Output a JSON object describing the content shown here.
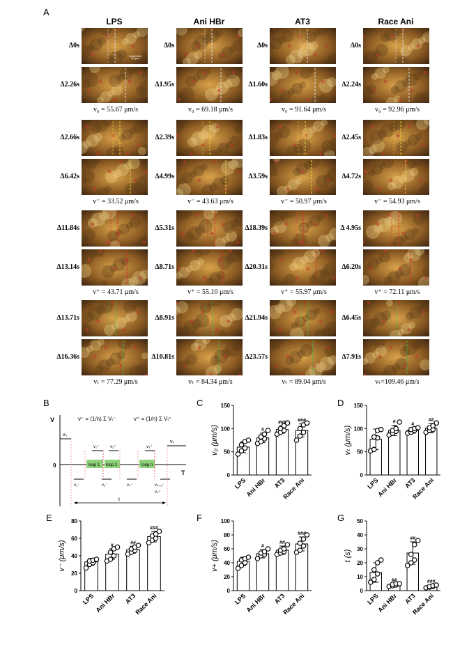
{
  "panel_letters": [
    "A",
    "B",
    "C",
    "D",
    "E",
    "F",
    "G"
  ],
  "columns": [
    {
      "title": "LPS",
      "rows": [
        {
          "t1": "Δ0s",
          "t2": "Δ2.26s",
          "vel": "v₀ = 55.67 μm/s",
          "line": "#dcdcdc"
        },
        {
          "t1": "Δ2.66s",
          "t2": "Δ6.42s",
          "vel": "v⁻ = 33.52 μm/s",
          "line": "#e6d23a"
        },
        {
          "t1": "Δ11.84s",
          "t2": "Δ13.14s",
          "vel": "v⁺ = 43.71 μm/s",
          "line": "#d42a2a"
        },
        {
          "t1": "Δ13.71s",
          "t2": "Δ16.36s",
          "vel": "vₜ = 77.29 μm/s",
          "line": "#3bbf4a"
        }
      ]
    },
    {
      "title": "Ani HBr",
      "rows": [
        {
          "t1": "Δ0s",
          "t2": "Δ1.95s",
          "vel": "v₀ = 69.18 μm/s",
          "line": "#dcdcdc"
        },
        {
          "t1": "Δ2.39s",
          "t2": "Δ4.99s",
          "vel": "v⁻ = 43.63 μm/s",
          "line": "#e6d23a"
        },
        {
          "t1": "Δ5.31s",
          "t2": "Δ8.71s",
          "vel": "v⁺ = 55.10 μm/s",
          "line": "#d42a2a"
        },
        {
          "t1": "Δ8.91s",
          "t2": "Δ10.81s",
          "vel": "vₜ = 84.34 μm/s",
          "line": "#3bbf4a"
        }
      ]
    },
    {
      "title": "AT3",
      "rows": [
        {
          "t1": "Δ0s",
          "t2": "Δ1.60s",
          "vel": "v₀ = 91.64 μm/s",
          "line": "#dcdcdc"
        },
        {
          "t1": "Δ1.83s",
          "t2": "Δ3.59s",
          "vel": "v⁻ = 50.97 μm/s",
          "line": "#e6d23a"
        },
        {
          "t1": "Δ18.39s",
          "t2": "Δ20.31s",
          "vel": "v⁺ = 55.97 μm/s",
          "line": "#d42a2a"
        },
        {
          "t1": "Δ21.94s",
          "t2": "Δ23.57s",
          "vel": "vₜ = 89.04 μm/s",
          "line": "#3bbf4a"
        }
      ]
    },
    {
      "title": "Race Ani",
      "rows": [
        {
          "t1": "Δ0s",
          "t2": "Δ2.24s",
          "vel": "v₀ = 92.96 μm/s",
          "line": "#dcdcdc"
        },
        {
          "t1": "Δ2.45s",
          "t2": "Δ4.72s",
          "vel": "v⁻ = 54.93 μm/s",
          "line": "#e6d23a"
        },
        {
          "t1": "Δ 4.95s",
          "t2": "Δ6.20s",
          "vel": "v⁺ = 72.11 μm/s",
          "line": "#d42a2a"
        },
        {
          "t1": "Δ6.45s",
          "t2": "Δ7.91s",
          "vel": "vₜ=109.46 μm/s",
          "line": "#3bbf4a"
        }
      ]
    }
  ],
  "scale_bar": "50 μm",
  "schematic": {
    "y_axis": "V",
    "x_axis": "T",
    "origin": "0",
    "formula_minus": "v⁻ = (1/n) Σ Vᵢ⁻",
    "formula_plus": "v⁺ = (1/n) Σ Vᵢ⁺",
    "labels": {
      "v0": "v₀",
      "vt": "vₜ",
      "v1p": "v₁⁺",
      "v2p": "v₂⁺",
      "v3p": "v₃⁺",
      "v1m": "v₁⁻",
      "v2m": "v₂⁻",
      "vnm": "vₙ⁻",
      "vn1m": "vₙ₊₁⁻",
      "vn1p": "vₙ⁺",
      "loop1": "loop 1",
      "loop2": "loop 2",
      "loopn": "loop n",
      "t": "t"
    }
  },
  "chart_data": [
    {
      "panel": "C",
      "type": "bar",
      "ylabel": "v₀ (μm/s)",
      "ylim": [
        0,
        150
      ],
      "yticks": [
        0,
        50,
        100,
        150
      ],
      "categories": [
        "LPS",
        "Ani HBr",
        "AT3",
        "Race Ani"
      ],
      "values": [
        60,
        80,
        98,
        96
      ],
      "errors": [
        12,
        10,
        8,
        14
      ],
      "points": [
        [
          45,
          52,
          58,
          65,
          72,
          75
        ],
        [
          68,
          72,
          78,
          82,
          88,
          96
        ],
        [
          88,
          92,
          96,
          100,
          106,
          112
        ],
        [
          75,
          84,
          92,
          100,
          108,
          112
        ]
      ],
      "annotations": [
        "",
        "#",
        "###",
        "###"
      ]
    },
    {
      "panel": "D",
      "type": "bar",
      "ylabel": "vₜ (μm/s)",
      "ylim": [
        0,
        150
      ],
      "yticks": [
        0,
        50,
        100,
        150
      ],
      "categories": [
        "LPS",
        "Ani HBr",
        "AT3",
        "Race Ani"
      ],
      "values": [
        77,
        96,
        96,
        101
      ],
      "errors": [
        22,
        11,
        6,
        10
      ],
      "points": [
        [
          52,
          55,
          80,
          82,
          96,
          98
        ],
        [
          86,
          90,
          94,
          96,
          100,
          114
        ],
        [
          90,
          92,
          96,
          98,
          100,
          102
        ],
        [
          92,
          96,
          98,
          102,
          106,
          112
        ]
      ],
      "annotations": [
        "",
        "#",
        "#",
        "##"
      ]
    },
    {
      "panel": "E",
      "type": "bar",
      "ylabel": "v⁻ (μm/s)",
      "ylim": [
        0,
        80
      ],
      "yticks": [
        0,
        20,
        40,
        60,
        80
      ],
      "categories": [
        "LPS",
        "Ani HBr",
        "AT3",
        "Race Ani"
      ],
      "values": [
        33,
        42,
        47,
        62
      ],
      "errors": [
        4,
        6,
        4,
        6
      ],
      "points": [
        [
          26,
          30,
          32,
          34,
          35,
          36
        ],
        [
          34,
          36,
          40,
          44,
          48,
          50
        ],
        [
          42,
          44,
          46,
          48,
          50,
          52
        ],
        [
          55,
          58,
          60,
          63,
          65,
          68
        ]
      ],
      "annotations": [
        "",
        "#",
        "##",
        "###"
      ]
    },
    {
      "panel": "F",
      "type": "bar",
      "ylabel": "v+ (μm/s)",
      "ylim": [
        0,
        100
      ],
      "yticks": [
        0,
        20,
        40,
        60,
        80,
        100
      ],
      "categories": [
        "LPS",
        "Ani HBr",
        "AT3",
        "Race Ani"
      ],
      "values": [
        42,
        53,
        58,
        67
      ],
      "errors": [
        6,
        6,
        6,
        10
      ],
      "points": [
        [
          32,
          36,
          40,
          44,
          46,
          48
        ],
        [
          46,
          50,
          52,
          54,
          56,
          60
        ],
        [
          52,
          54,
          56,
          58,
          60,
          66
        ],
        [
          55,
          58,
          64,
          68,
          74,
          80
        ]
      ],
      "annotations": [
        "",
        "#",
        "##",
        "###"
      ]
    },
    {
      "panel": "G",
      "type": "bar",
      "ylabel": "t (s)",
      "ylim": [
        0,
        50
      ],
      "yticks": [
        0,
        10,
        20,
        30,
        40,
        50
      ],
      "categories": [
        "LPS",
        "Ani HBr",
        "AT3",
        "Race Ani"
      ],
      "values": [
        13,
        4,
        27,
        3
      ],
      "errors": [
        7,
        1,
        8,
        1
      ],
      "points": [
        [
          6,
          8,
          12,
          15,
          20,
          22
        ],
        [
          3,
          3.5,
          4,
          4.5,
          5,
          5
        ],
        [
          18,
          20,
          22,
          26,
          33,
          36
        ],
        [
          2,
          2.5,
          3,
          3,
          3.5,
          4
        ]
      ],
      "annotations": [
        "",
        "##",
        "##",
        "###"
      ]
    }
  ],
  "colors": {
    "bar_stroke": "#000",
    "point_fill": "#fff"
  }
}
